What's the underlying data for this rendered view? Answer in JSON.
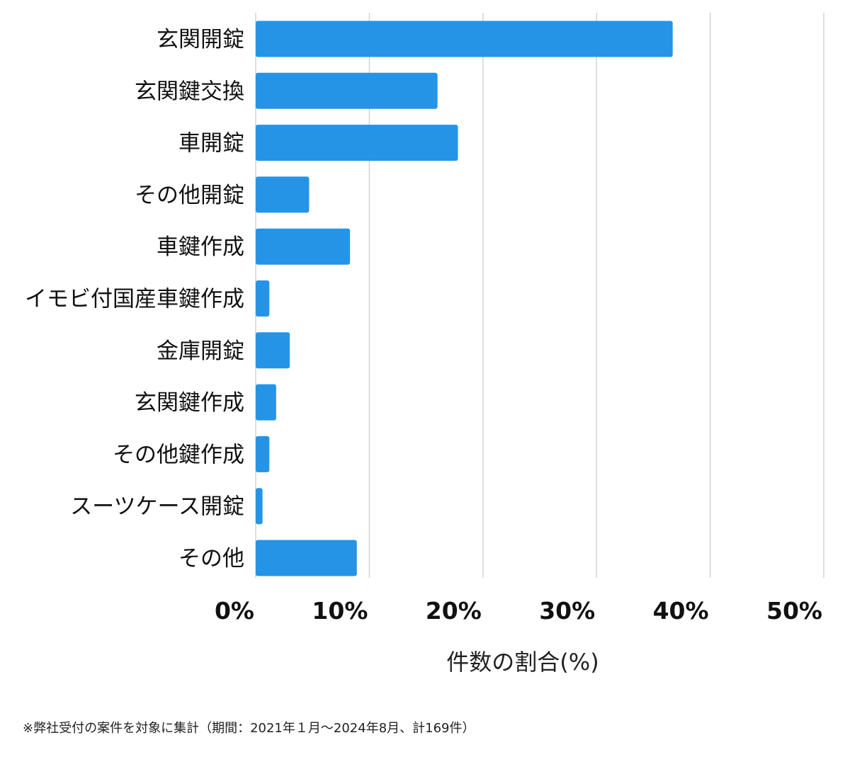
{
  "chart_data": {
    "type": "bar",
    "orientation": "horizontal",
    "categories": [
      "玄関開錠",
      "玄関鍵交換",
      "車開錠",
      "その他開錠",
      "車鍵作成",
      "イモビ付国産車鍵作成",
      "金庫開錠",
      "玄関鍵作成",
      "その他鍵作成",
      "スーツケース開錠",
      "その他"
    ],
    "values": [
      36.7,
      16.0,
      17.8,
      4.7,
      8.3,
      1.2,
      3.0,
      1.8,
      1.2,
      0.6,
      8.9
    ],
    "xlim": [
      0,
      50
    ],
    "xticks": [
      0,
      10,
      20,
      30,
      40,
      50
    ],
    "tick_suffix": "%",
    "xlabel": "件数の割合(%)",
    "ylabel": "",
    "title": "",
    "grid": "vertical",
    "legend": "none",
    "bar_color": "#2594e6"
  },
  "footnote": "※弊社受付の案件を対象に集計（期間：2021年１月〜2024年8月、計169件）"
}
